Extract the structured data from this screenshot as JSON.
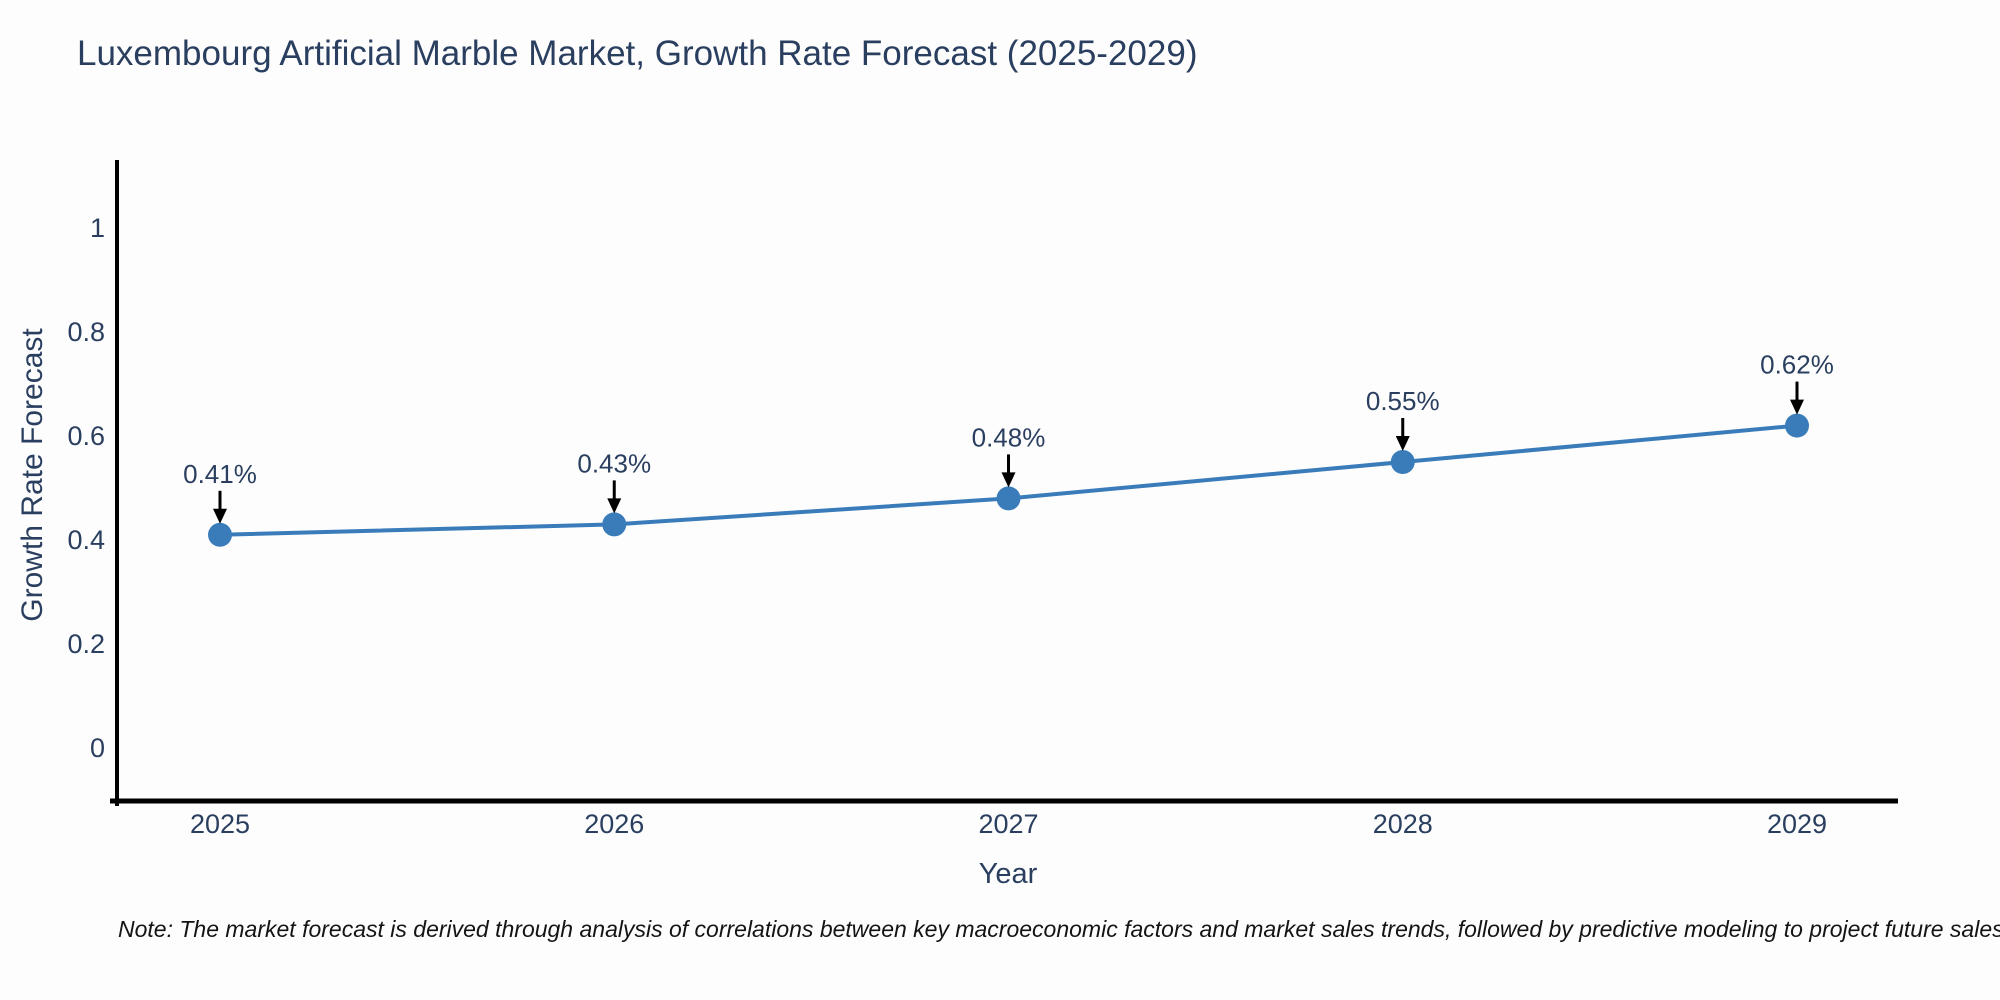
{
  "page": {
    "background": "#fdfdfd"
  },
  "note": "Note: The market forecast is derived through analysis of correlations between key macroeconomic factors and market sales trends, followed by predictive modeling to project future sales",
  "chart_data": {
    "type": "line",
    "title": "Luxembourg Artificial Marble Market, Growth Rate Forecast (2025-2029)",
    "xlabel": "Year",
    "ylabel": "Growth Rate Forecast",
    "x": [
      2025,
      2026,
      2027,
      2028,
      2029
    ],
    "x_tick_labels": [
      "2025",
      "2026",
      "2027",
      "2028",
      "2029"
    ],
    "y": [
      0.41,
      0.43,
      0.48,
      0.55,
      0.62
    ],
    "point_labels": [
      "0.41%",
      "0.43%",
      "0.48%",
      "0.55%",
      "0.62%"
    ],
    "y_ticks": [
      0,
      0.2,
      0.4,
      0.6,
      0.8,
      1
    ],
    "y_tick_labels": [
      "0",
      "0.2",
      "0.4",
      "0.6",
      "0.8",
      "1"
    ],
    "ylim": [
      -0.1,
      1.13
    ],
    "grid": false,
    "legend": "none",
    "line_color": "#3a7cba",
    "marker_color": "#3a7cba",
    "axis_color": "#000000",
    "annotation_arrow_color": "#000000",
    "text_color": "#2a3f5f",
    "note_color": "#141414"
  }
}
